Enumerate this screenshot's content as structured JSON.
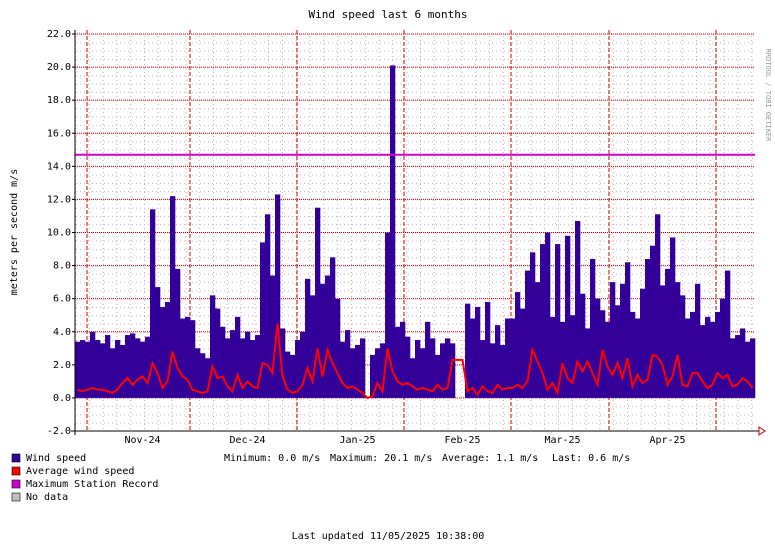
{
  "chart_data": {
    "type": "bar",
    "title": "Wind speed last 6 months",
    "y_label": "meters per second    m/s",
    "side_text": "RRDTOOL / TOBI OETIKER",
    "categories": [
      null,
      null,
      null,
      null,
      null,
      null,
      null,
      null,
      null,
      null,
      null,
      null,
      null,
      "Nov-24",
      null,
      null,
      null,
      null,
      null,
      null,
      null,
      null,
      null,
      null,
      null,
      null,
      null,
      null,
      null,
      null,
      null,
      null,
      null,
      null,
      "Dec-24",
      null,
      null,
      null,
      null,
      null,
      null,
      null,
      null,
      null,
      null,
      null,
      null,
      null,
      null,
      null,
      null,
      null,
      null,
      null,
      null,
      null,
      "Jan-25",
      null,
      null,
      null,
      null,
      null,
      null,
      null,
      null,
      null,
      null,
      null,
      null,
      null,
      null,
      null,
      null,
      null,
      null,
      null,
      null,
      "Feb-25",
      null,
      null,
      null,
      null,
      null,
      null,
      null,
      null,
      null,
      null,
      null,
      null,
      null,
      null,
      null,
      null,
      null,
      null,
      null,
      "Mar-25",
      null,
      null,
      null,
      null,
      null,
      null,
      null,
      null,
      null,
      null,
      null,
      null,
      null,
      null,
      null,
      null,
      null,
      null,
      null,
      null,
      "Apr-25",
      null,
      null,
      null,
      null,
      null,
      null,
      null,
      null,
      null,
      null,
      null,
      null,
      null,
      null,
      null,
      null,
      null
    ],
    "series": [
      {
        "name": "Wind speed",
        "color": "#330099",
        "kind": "bar",
        "values": [
          3.4,
          3.5,
          3.4,
          4.0,
          3.5,
          3.3,
          3.8,
          3.0,
          3.5,
          3.2,
          3.8,
          3.9,
          3.6,
          3.4,
          3.7,
          11.4,
          6.7,
          5.5,
          5.8,
          12.2,
          7.8,
          4.8,
          4.9,
          4.7,
          3.0,
          2.7,
          2.4,
          6.2,
          5.4,
          4.3,
          3.6,
          4.1,
          4.9,
          3.6,
          4.0,
          3.5,
          3.8,
          9.4,
          11.1,
          7.4,
          12.3,
          4.2,
          2.8,
          2.6,
          3.5,
          4.0,
          7.2,
          6.2,
          11.5,
          6.9,
          7.4,
          8.5,
          6.0,
          3.4,
          4.1,
          3.0,
          3.2,
          3.6,
          0.0,
          2.6,
          3.0,
          3.3,
          10.0,
          20.1,
          4.3,
          4.6,
          3.7,
          2.4,
          3.5,
          3.0,
          4.6,
          3.6,
          2.6,
          3.3,
          3.6,
          3.3,
          null,
          null,
          5.7,
          4.8,
          5.5,
          3.5,
          5.8,
          3.3,
          4.4,
          3.2,
          4.8,
          4.8,
          6.4,
          5.4,
          7.7,
          8.8,
          7.0,
          9.3,
          10.0,
          4.9,
          9.3,
          4.6,
          9.8,
          5.0,
          10.7,
          6.3,
          4.2,
          8.4,
          6.0,
          5.3,
          4.6,
          7.0,
          5.6,
          6.9,
          8.2,
          5.2,
          4.8,
          6.6,
          8.4,
          9.2,
          11.1,
          6.8,
          7.8,
          9.7,
          7.0,
          6.2,
          4.8,
          5.2,
          6.9,
          4.4,
          4.9,
          4.6,
          5.2,
          6.0,
          7.7,
          3.6,
          3.8,
          4.2,
          3.4,
          3.6
        ]
      },
      {
        "name": "Average wind speed",
        "color": "#ff0000",
        "kind": "line",
        "values": [
          0.5,
          0.4,
          0.5,
          0.6,
          0.5,
          0.5,
          0.4,
          0.3,
          0.5,
          0.9,
          1.2,
          0.8,
          1.1,
          1.3,
          0.9,
          2.1,
          1.5,
          0.6,
          1.0,
          2.8,
          1.8,
          1.3,
          1.1,
          0.5,
          0.4,
          0.3,
          0.4,
          1.9,
          1.2,
          1.3,
          0.7,
          0.4,
          1.4,
          0.6,
          1.0,
          0.7,
          0.6,
          2.1,
          2.0,
          1.5,
          4.5,
          1.3,
          0.5,
          0.3,
          0.4,
          0.8,
          1.8,
          1.0,
          3.0,
          1.3,
          2.9,
          2.1,
          1.5,
          0.9,
          0.6,
          0.7,
          0.5,
          0.3,
          0.0,
          0.1,
          0.9,
          0.4,
          3.0,
          1.6,
          1.0,
          0.8,
          0.9,
          0.7,
          0.5,
          0.6,
          0.5,
          0.4,
          0.8,
          0.5,
          0.6,
          2.3,
          2.3,
          2.3,
          0.4,
          0.6,
          0.2,
          0.7,
          0.4,
          0.3,
          0.8,
          0.5,
          0.6,
          0.6,
          0.8,
          0.6,
          1.0,
          2.9,
          2.2,
          1.5,
          0.5,
          0.9,
          0.3,
          2.1,
          1.2,
          0.9,
          2.2,
          1.6,
          2.2,
          1.5,
          0.8,
          2.9,
          1.9,
          1.4,
          2.1,
          1.2,
          2.4,
          0.7,
          1.4,
          0.9,
          1.1,
          2.6,
          2.5,
          2.0,
          0.8,
          1.3,
          2.6,
          0.8,
          0.7,
          1.5,
          1.5,
          1.0,
          0.6,
          0.8,
          1.5,
          1.2,
          1.4,
          0.7,
          0.8,
          1.2,
          1.0,
          0.6
        ]
      }
    ],
    "record": {
      "name": "Maximum Station Record",
      "color": "#cc00cc",
      "value": 14.7
    },
    "no_data": {
      "name": "No data",
      "color": "#c0c0c0"
    },
    "ylim": [
      -2,
      22
    ],
    "yticks": [
      {
        "value": -2,
        "label": "-2.0"
      },
      {
        "value": 0,
        "label": "0.0"
      },
      {
        "value": 2,
        "label": "2.0"
      },
      {
        "value": 4,
        "label": "4.0"
      },
      {
        "value": 6,
        "label": "6.0"
      },
      {
        "value": 8,
        "label": "8.0"
      },
      {
        "value": 10,
        "label": "10.0"
      },
      {
        "value": 12,
        "label": "12.0"
      },
      {
        "value": 14,
        "label": "14.0"
      },
      {
        "value": 16,
        "label": "16.0"
      },
      {
        "value": 18,
        "label": "18.0"
      },
      {
        "value": 20,
        "label": "20.0"
      },
      {
        "value": 22,
        "label": "22.0"
      }
    ],
    "grid": true,
    "stats": [
      "Minimum: 0.0 m/s",
      "Maximum: 20.1 m/s",
      "Average: 1.1 m/s",
      "Last: 0.6 m/s"
    ],
    "footer": "Last updated 11/05/2025 10:38:00"
  }
}
